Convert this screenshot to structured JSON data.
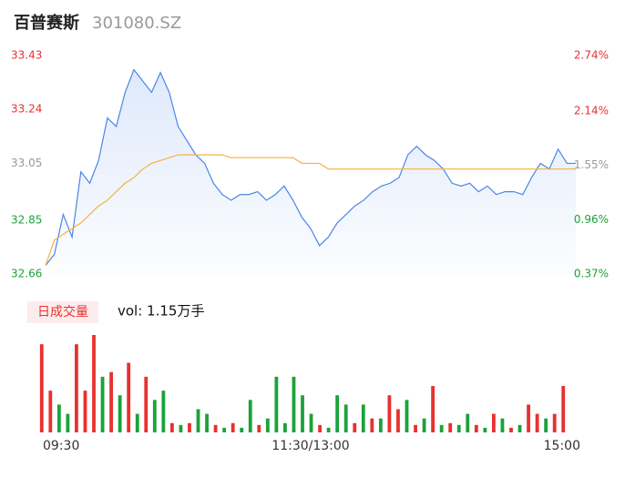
{
  "chart_data": {
    "type": "intraday",
    "title": "百普赛斯",
    "code": "301080.SZ",
    "series": [
      {
        "name": "price",
        "color": "#4a86e8",
        "values": [
          32.69,
          32.73,
          32.87,
          32.79,
          33.02,
          32.98,
          33.06,
          33.21,
          33.18,
          33.3,
          33.38,
          33.34,
          33.3,
          33.37,
          33.3,
          33.18,
          33.13,
          33.08,
          33.05,
          32.98,
          32.94,
          32.92,
          32.94,
          32.94,
          32.95,
          32.92,
          32.94,
          32.97,
          32.92,
          32.86,
          32.82,
          32.76,
          32.79,
          32.84,
          32.87,
          32.9,
          32.92,
          32.95,
          32.97,
          32.98,
          33.0,
          33.08,
          33.11,
          33.08,
          33.06,
          33.03,
          32.98,
          32.97,
          32.98,
          32.95,
          32.97,
          32.94,
          32.95,
          32.95,
          32.94,
          33.0,
          33.05,
          33.03,
          33.1,
          33.05,
          33.05
        ]
      },
      {
        "name": "average",
        "color": "#f4b33d",
        "values": [
          32.69,
          32.78,
          32.8,
          32.82,
          32.84,
          32.87,
          32.9,
          32.92,
          32.95,
          32.98,
          33.0,
          33.03,
          33.05,
          33.06,
          33.07,
          33.08,
          33.08,
          33.08,
          33.08,
          33.08,
          33.08,
          33.07,
          33.07,
          33.07,
          33.07,
          33.07,
          33.07,
          33.07,
          33.07,
          33.05,
          33.05,
          33.05,
          33.03,
          33.03,
          33.03,
          33.03,
          33.03,
          33.03,
          33.03,
          33.03,
          33.03,
          33.03,
          33.03,
          33.03,
          33.03,
          33.03,
          33.03,
          33.03,
          33.03,
          33.03,
          33.03,
          33.03,
          33.03,
          33.03,
          33.03,
          33.03,
          33.03,
          33.03,
          33.03,
          33.03,
          33.03
        ]
      }
    ],
    "xlim": [
      0,
      240
    ],
    "xticks": [
      {
        "value": 0,
        "label": "09:30"
      },
      {
        "value": 120,
        "label": "11:30/13:00"
      },
      {
        "value": 240,
        "label": "15:00"
      }
    ],
    "ylim": [
      32.66,
      33.43
    ],
    "yticks": [
      {
        "value": 33.43,
        "label": "33.43"
      },
      {
        "value": 33.24,
        "label": "33.24"
      },
      {
        "value": 33.05,
        "label": "33.05"
      },
      {
        "value": 32.85,
        "label": "32.85"
      },
      {
        "value": 32.66,
        "label": "32.66"
      }
    ],
    "y2lim": [
      0.37,
      2.74
    ],
    "y2ticks": [
      {
        "value": 2.74,
        "label": "2.74%"
      },
      {
        "value": 2.14,
        "label": "2.14%"
      },
      {
        "value": 1.55,
        "label": "1.55%"
      },
      {
        "value": 0.96,
        "label": "0.96%"
      },
      {
        "value": 0.37,
        "label": "0.37%"
      }
    ],
    "tick_colors": {
      "up": "#e8312f",
      "flat": "#999999",
      "down": "#1aa33a"
    },
    "volume": {
      "title": "日成交量",
      "summary": "vol: 1.15万手",
      "ylim": [
        0,
        1050
      ],
      "values": [
        950,
        450,
        300,
        200,
        950,
        450,
        1050,
        600,
        650,
        400,
        750,
        200,
        600,
        350,
        450,
        100,
        80,
        100,
        250,
        200,
        80,
        50,
        100,
        50,
        350,
        80,
        150,
        600,
        100,
        600,
        400,
        200,
        80,
        50,
        400,
        300,
        100,
        300,
        150,
        150,
        400,
        250,
        350,
        80,
        150,
        500,
        80,
        100,
        80,
        200,
        80,
        50,
        200,
        150,
        50,
        80,
        300,
        200,
        150,
        200,
        500
      ],
      "direction": [
        "up",
        "up",
        "down",
        "down",
        "up",
        "up",
        "up",
        "down",
        "up",
        "down",
        "up",
        "down",
        "up",
        "down",
        "down",
        "up",
        "down",
        "up",
        "down",
        "down",
        "up",
        "down",
        "up",
        "down",
        "down",
        "up",
        "down",
        "down",
        "down",
        "down",
        "down",
        "down",
        "up",
        "down",
        "down",
        "down",
        "up",
        "down",
        "up",
        "down",
        "up",
        "up",
        "down",
        "up",
        "down",
        "up",
        "down",
        "up",
        "down",
        "down",
        "up",
        "down",
        "up",
        "down",
        "up",
        "down",
        "up",
        "up",
        "down",
        "up",
        "up"
      ],
      "colors": {
        "up": "#e8312f",
        "down": "#1aa33a"
      }
    }
  }
}
